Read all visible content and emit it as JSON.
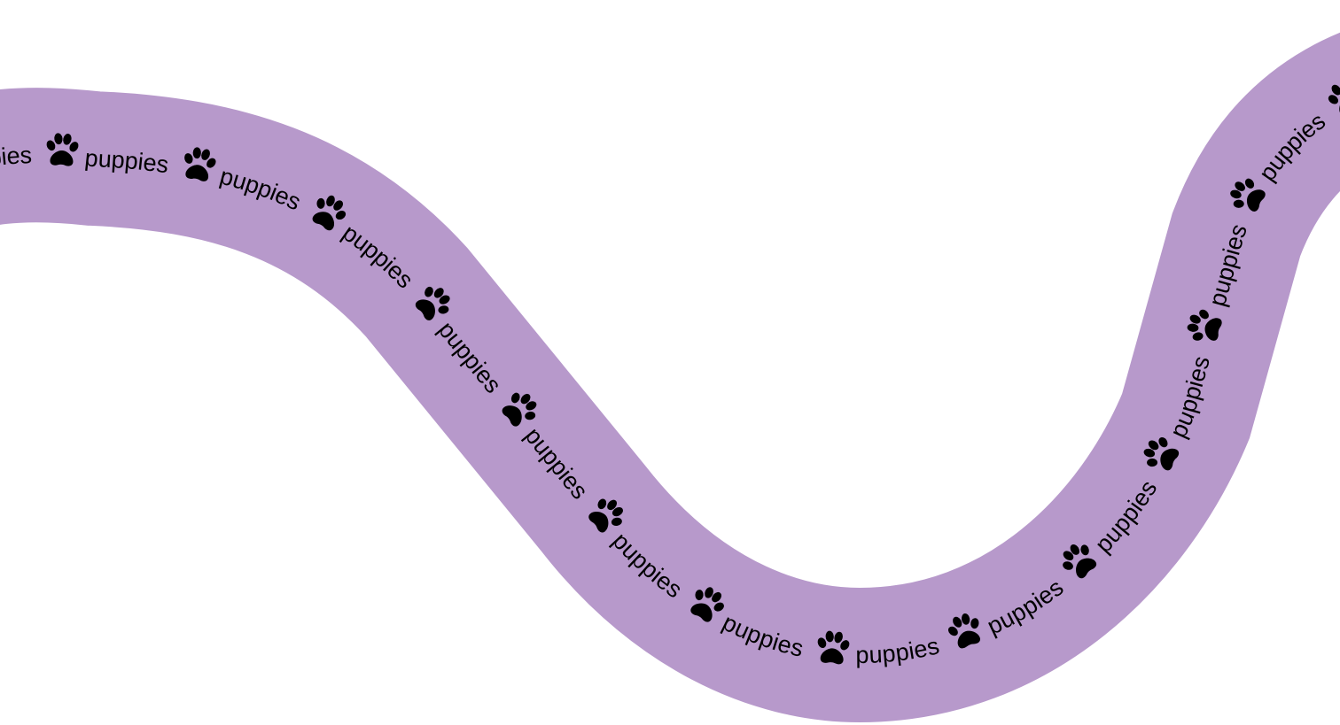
{
  "ribbon": {
    "word": "puppies",
    "icon": "paw-print-icon",
    "band_color": "#B799CB",
    "text_color": "#000000",
    "background_color": "#FFFFFF"
  }
}
